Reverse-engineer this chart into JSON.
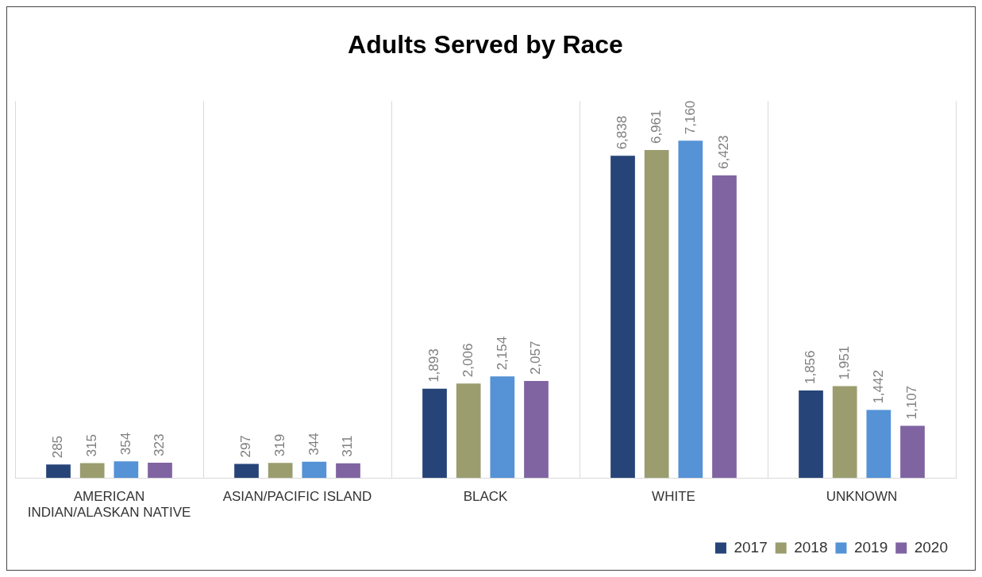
{
  "chart_data": {
    "type": "bar",
    "title": "Adults Served by Race",
    "categories": [
      "AMERICAN INDIAN/ALASKAN NATIVE",
      "ASIAN/PACIFIC ISLAND",
      "BLACK",
      "WHITE",
      "UNKNOWN"
    ],
    "series": [
      {
        "name": "2017",
        "color": "#264478",
        "values": [
          285,
          297,
          1893,
          6838,
          1856
        ],
        "value_labels": [
          "285",
          "297",
          "1,893",
          "6,838",
          "1,856"
        ]
      },
      {
        "name": "2018",
        "color": "#9b9d6f",
        "values": [
          315,
          319,
          2006,
          6961,
          1951
        ],
        "value_labels": [
          "315",
          "319",
          "2,006",
          "6,961",
          "1,951"
        ]
      },
      {
        "name": "2019",
        "color": "#5592d6",
        "values": [
          354,
          344,
          2154,
          7160,
          1442
        ],
        "value_labels": [
          "354",
          "344",
          "2,154",
          "7,160",
          "1,442"
        ]
      },
      {
        "name": "2020",
        "color": "#8064a2",
        "values": [
          323,
          311,
          2057,
          6423,
          1107
        ],
        "value_labels": [
          "323",
          "311",
          "2,057",
          "6,423",
          "1,107"
        ]
      }
    ],
    "grid": "x",
    "legend": "bottom right"
  }
}
